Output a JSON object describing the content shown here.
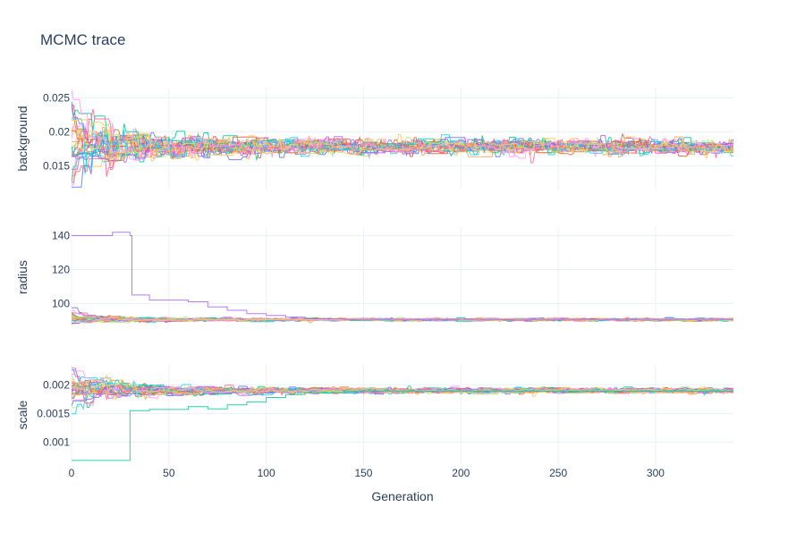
{
  "chart_data": {
    "type": "line",
    "title": "MCMC trace",
    "xlabel": "Generation",
    "xlim": [
      0,
      340
    ],
    "xticks": [
      0,
      50,
      100,
      150,
      200,
      250,
      300
    ],
    "grid": true,
    "colors": [
      "#636efa",
      "#ef553b",
      "#00cc96",
      "#ab63fa",
      "#ffa15a",
      "#19d3f3",
      "#ff6692",
      "#b6e880",
      "#ff97ff",
      "#fecb52"
    ],
    "panels": [
      {
        "ylabel": "background",
        "ylim": [
          0.0115,
          0.0265
        ],
        "yticks": [
          0.015,
          0.02,
          0.025
        ],
        "ytick_labels": [
          "0.015",
          "0.02",
          "0.025"
        ],
        "chains": 30,
        "converged_value": 0.0178,
        "spread_initial": 0.0045,
        "spread_final": 0.0007
      },
      {
        "ylabel": "radius",
        "ylim": [
          86,
          145
        ],
        "yticks": [
          100,
          120,
          140
        ],
        "ytick_labels": [
          "100",
          "120",
          "140"
        ],
        "chains": 30,
        "converged_value": 90.5,
        "spread_initial": 2.5,
        "spread_final": 0.5,
        "outlier_chain": {
          "points": [
            [
              0,
              140
            ],
            [
              19,
              140
            ],
            [
              21,
              142
            ],
            [
              30,
              140
            ],
            [
              31,
              105
            ],
            [
              40,
              102
            ],
            [
              60,
              101
            ],
            [
              70,
              98
            ],
            [
              80,
              96
            ],
            [
              90,
              94
            ],
            [
              100,
              93
            ],
            [
              110,
              92
            ],
            [
              120,
              91
            ],
            [
              140,
              90.7
            ],
            [
              340,
              90.5
            ]
          ]
        }
      },
      {
        "ylabel": "scale",
        "ylim": [
          0.0006,
          0.00235
        ],
        "yticks": [
          0.001,
          0.0015,
          0.002
        ],
        "ytick_labels": [
          "0.001",
          "0.0015",
          "0.002"
        ],
        "chains": 30,
        "converged_value": 0.0019,
        "spread_initial": 0.00025,
        "spread_final": 3e-05,
        "outlier_chain": {
          "points": [
            [
              0,
              0.00068
            ],
            [
              29,
              0.00068
            ],
            [
              30,
              0.00155
            ],
            [
              40,
              0.00157
            ],
            [
              60,
              0.00162
            ],
            [
              70,
              0.00158
            ],
            [
              80,
              0.00165
            ],
            [
              90,
              0.0017
            ],
            [
              100,
              0.00178
            ],
            [
              110,
              0.00183
            ],
            [
              120,
              0.00186
            ],
            [
              140,
              0.00189
            ],
            [
              340,
              0.0019
            ]
          ]
        }
      }
    ]
  }
}
